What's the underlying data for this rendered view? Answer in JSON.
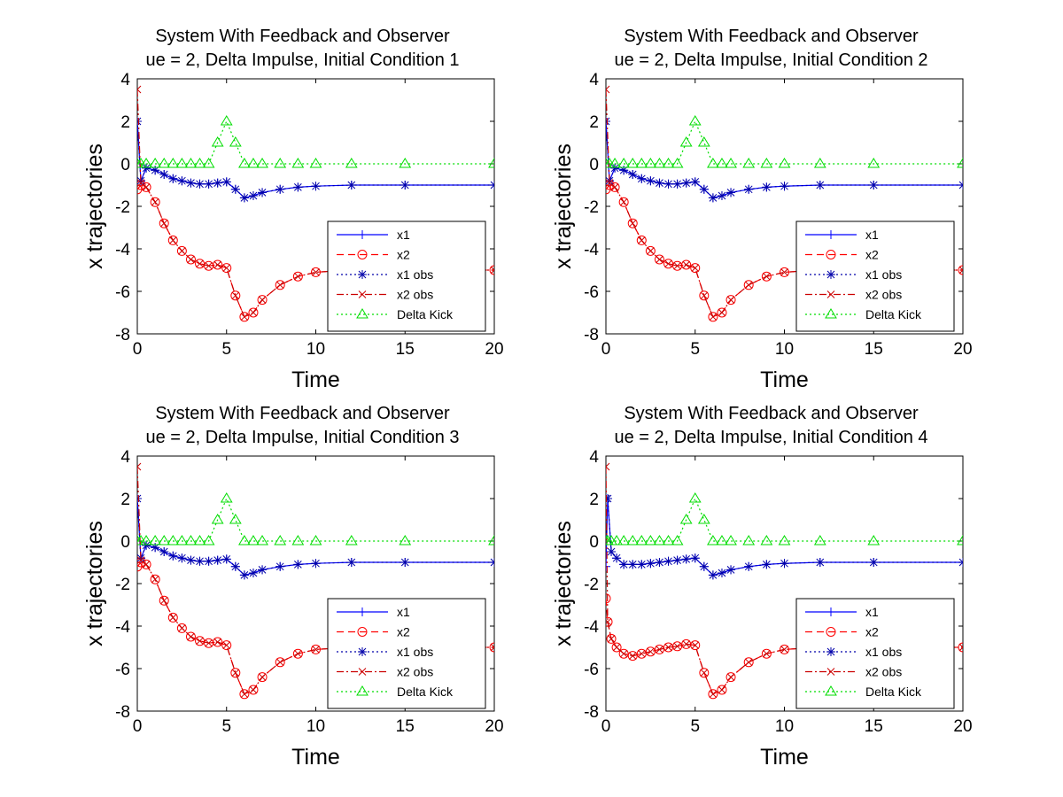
{
  "figure": {
    "series_legend": [
      {
        "name": "x1",
        "color": "#0000ff",
        "line": "solid",
        "marker": "plus"
      },
      {
        "name": "x2",
        "color": "#ff0000",
        "line": "dashed",
        "marker": "circle"
      },
      {
        "name": "x1 obs",
        "color": "#0000aa",
        "line": "dotted",
        "marker": "star"
      },
      {
        "name": "x2 obs",
        "color": "#cc0000",
        "line": "dashdot",
        "marker": "x"
      },
      {
        "name": "Delta Kick",
        "color": "#00dd00",
        "line": "dotted",
        "marker": "triangle"
      }
    ]
  },
  "chart_data": [
    {
      "type": "line",
      "title": "System With Feedback and Observer",
      "subtitle": "ue = 2, Delta Impulse, Initial Condition 1",
      "xlabel": "Time",
      "ylabel": "x trajectories",
      "xlim": [
        0,
        20
      ],
      "ylim": [
        -8,
        4
      ],
      "xticks": [
        0,
        5,
        10,
        15,
        20
      ],
      "yticks": [
        -8,
        -6,
        -4,
        -2,
        0,
        2,
        4
      ],
      "grid": false,
      "legend_position": "bottom-right",
      "x": [
        0,
        0.2,
        0.5,
        1,
        1.5,
        2,
        2.5,
        3,
        3.5,
        4,
        4.5,
        5,
        5.5,
        6,
        6.5,
        7,
        8,
        9,
        10,
        12,
        15,
        20
      ],
      "series": [
        {
          "name": "x1",
          "values": [
            2,
            -0.8,
            -0.2,
            -0.3,
            -0.5,
            -0.7,
            -0.8,
            -0.9,
            -0.95,
            -0.95,
            -0.9,
            -0.85,
            -1.2,
            -1.6,
            -1.5,
            -1.35,
            -1.2,
            -1.1,
            -1.05,
            -1.0,
            -1.0,
            -1.0
          ]
        },
        {
          "name": "x2",
          "values": [
            -1.2,
            -1.0,
            -1.1,
            -1.8,
            -2.8,
            -3.6,
            -4.1,
            -4.5,
            -4.7,
            -4.8,
            -4.75,
            -4.9,
            -6.2,
            -7.2,
            -7.0,
            -6.4,
            -5.7,
            -5.3,
            -5.1,
            -5.0,
            -5.0,
            -5.0
          ]
        },
        {
          "name": "x1 obs",
          "values": [
            2,
            -0.8,
            -0.2,
            -0.3,
            -0.5,
            -0.7,
            -0.8,
            -0.9,
            -0.95,
            -0.95,
            -0.9,
            -0.85,
            -1.2,
            -1.6,
            -1.5,
            -1.35,
            -1.2,
            -1.1,
            -1.05,
            -1.0,
            -1.0,
            -1.0
          ]
        },
        {
          "name": "x2 obs",
          "values": [
            3.5,
            -0.9,
            -1.1,
            -1.8,
            -2.8,
            -3.6,
            -4.1,
            -4.5,
            -4.7,
            -4.8,
            -4.75,
            -4.9,
            -6.2,
            -7.2,
            -7.0,
            -6.4,
            -5.7,
            -5.3,
            -5.1,
            -5.0,
            -5.0,
            -5.0
          ]
        },
        {
          "name": "Delta Kick",
          "values": [
            0,
            0,
            0,
            0,
            0,
            0,
            0,
            0,
            0,
            0,
            1.0,
            2.0,
            1.0,
            0,
            0,
            0,
            0,
            0,
            0,
            0,
            0,
            0
          ]
        }
      ]
    },
    {
      "type": "line",
      "title": "System With Feedback and Observer",
      "subtitle": "ue = 2, Delta Impulse, Initial Condition 2",
      "xlabel": "Time",
      "ylabel": "x trajectories",
      "xlim": [
        0,
        20
      ],
      "ylim": [
        -8,
        4
      ],
      "xticks": [
        0,
        5,
        10,
        15,
        20
      ],
      "yticks": [
        -8,
        -6,
        -4,
        -2,
        0,
        2,
        4
      ],
      "grid": false,
      "legend_position": "bottom-right",
      "x": [
        0,
        0.2,
        0.5,
        1,
        1.5,
        2,
        2.5,
        3,
        3.5,
        4,
        4.5,
        5,
        5.5,
        6,
        6.5,
        7,
        8,
        9,
        10,
        12,
        15,
        20
      ],
      "series": [
        {
          "name": "x1",
          "values": [
            2,
            -0.8,
            -0.2,
            -0.3,
            -0.5,
            -0.7,
            -0.8,
            -0.9,
            -0.95,
            -0.95,
            -0.9,
            -0.85,
            -1.2,
            -1.6,
            -1.5,
            -1.35,
            -1.2,
            -1.1,
            -1.05,
            -1.0,
            -1.0,
            -1.0
          ]
        },
        {
          "name": "x2",
          "values": [
            -1.2,
            -1.0,
            -1.1,
            -1.8,
            -2.8,
            -3.6,
            -4.1,
            -4.5,
            -4.7,
            -4.8,
            -4.75,
            -4.9,
            -6.2,
            -7.2,
            -7.0,
            -6.4,
            -5.7,
            -5.3,
            -5.1,
            -5.0,
            -5.0,
            -5.0
          ]
        },
        {
          "name": "x1 obs",
          "values": [
            2,
            -0.8,
            -0.2,
            -0.3,
            -0.5,
            -0.7,
            -0.8,
            -0.9,
            -0.95,
            -0.95,
            -0.9,
            -0.85,
            -1.2,
            -1.6,
            -1.5,
            -1.35,
            -1.2,
            -1.1,
            -1.05,
            -1.0,
            -1.0,
            -1.0
          ]
        },
        {
          "name": "x2 obs",
          "values": [
            3.5,
            -0.9,
            -1.1,
            -1.8,
            -2.8,
            -3.6,
            -4.1,
            -4.5,
            -4.7,
            -4.8,
            -4.75,
            -4.9,
            -6.2,
            -7.2,
            -7.0,
            -6.4,
            -5.7,
            -5.3,
            -5.1,
            -5.0,
            -5.0,
            -5.0
          ]
        },
        {
          "name": "Delta Kick",
          "values": [
            0,
            0,
            0,
            0,
            0,
            0,
            0,
            0,
            0,
            0,
            1.0,
            2.0,
            1.0,
            0,
            0,
            0,
            0,
            0,
            0,
            0,
            0,
            0
          ]
        }
      ]
    },
    {
      "type": "line",
      "title": "System With Feedback and Observer",
      "subtitle": "ue = 2, Delta Impulse, Initial Condition 3",
      "xlabel": "Time",
      "ylabel": "x trajectories",
      "xlim": [
        0,
        20
      ],
      "ylim": [
        -8,
        4
      ],
      "xticks": [
        0,
        5,
        10,
        15,
        20
      ],
      "yticks": [
        -8,
        -6,
        -4,
        -2,
        0,
        2,
        4
      ],
      "grid": false,
      "legend_position": "bottom-right",
      "x": [
        0,
        0.2,
        0.5,
        1,
        1.5,
        2,
        2.5,
        3,
        3.5,
        4,
        4.5,
        5,
        5.5,
        6,
        6.5,
        7,
        8,
        9,
        10,
        12,
        15,
        20
      ],
      "series": [
        {
          "name": "x1",
          "values": [
            2,
            -0.8,
            -0.2,
            -0.3,
            -0.5,
            -0.7,
            -0.8,
            -0.9,
            -0.95,
            -0.95,
            -0.9,
            -0.85,
            -1.2,
            -1.6,
            -1.5,
            -1.35,
            -1.2,
            -1.1,
            -1.05,
            -1.0,
            -1.0,
            -1.0
          ]
        },
        {
          "name": "x2",
          "values": [
            -1.2,
            -1.0,
            -1.1,
            -1.8,
            -2.8,
            -3.6,
            -4.1,
            -4.5,
            -4.7,
            -4.8,
            -4.75,
            -4.9,
            -6.2,
            -7.2,
            -7.0,
            -6.4,
            -5.7,
            -5.3,
            -5.1,
            -5.0,
            -5.0,
            -5.0
          ]
        },
        {
          "name": "x1 obs",
          "values": [
            2,
            -0.8,
            -0.2,
            -0.3,
            -0.5,
            -0.7,
            -0.8,
            -0.9,
            -0.95,
            -0.95,
            -0.9,
            -0.85,
            -1.2,
            -1.6,
            -1.5,
            -1.35,
            -1.2,
            -1.1,
            -1.05,
            -1.0,
            -1.0,
            -1.0
          ]
        },
        {
          "name": "x2 obs",
          "values": [
            3.5,
            -0.9,
            -1.1,
            -1.8,
            -2.8,
            -3.6,
            -4.1,
            -4.5,
            -4.7,
            -4.8,
            -4.75,
            -4.9,
            -6.2,
            -7.2,
            -7.0,
            -6.4,
            -5.7,
            -5.3,
            -5.1,
            -5.0,
            -5.0,
            -5.0
          ]
        },
        {
          "name": "Delta Kick",
          "values": [
            0,
            0,
            0,
            0,
            0,
            0,
            0,
            0,
            0,
            0,
            1.0,
            2.0,
            1.0,
            0,
            0,
            0,
            0,
            0,
            0,
            0,
            0,
            0
          ]
        }
      ]
    },
    {
      "type": "line",
      "title": "System With Feedback and Observer",
      "subtitle": "ue = 2, Delta Impulse, Initial Condition 4",
      "xlabel": "Time",
      "ylabel": "x trajectories",
      "xlim": [
        0,
        20
      ],
      "ylim": [
        -8,
        4
      ],
      "xticks": [
        0,
        5,
        10,
        15,
        20
      ],
      "yticks": [
        -8,
        -6,
        -4,
        -2,
        0,
        2,
        4
      ],
      "grid": false,
      "legend_position": "bottom-right",
      "x": [
        0,
        0.1,
        0.3,
        0.6,
        1,
        1.5,
        2,
        2.5,
        3,
        3.5,
        4,
        4.5,
        5,
        5.5,
        6,
        6.5,
        7,
        8,
        9,
        10,
        12,
        15,
        20
      ],
      "series": [
        {
          "name": "x1",
          "values": [
            -1.2,
            2,
            -0.5,
            -0.8,
            -1.1,
            -1.1,
            -1.1,
            -1.05,
            -1.0,
            -0.95,
            -0.9,
            -0.85,
            -0.8,
            -1.2,
            -1.6,
            -1.5,
            -1.35,
            -1.2,
            -1.1,
            -1.05,
            -1.0,
            -1.0,
            -1.0
          ]
        },
        {
          "name": "x2",
          "values": [
            -2.7,
            -3.8,
            -4.6,
            -5.0,
            -5.3,
            -5.4,
            -5.3,
            -5.2,
            -5.1,
            -5.0,
            -4.95,
            -4.85,
            -4.9,
            -6.2,
            -7.2,
            -7.0,
            -6.4,
            -5.7,
            -5.3,
            -5.1,
            -5.0,
            -5.0,
            -5.0
          ]
        },
        {
          "name": "x1 obs",
          "values": [
            2,
            2,
            -0.5,
            -0.8,
            -1.1,
            -1.1,
            -1.1,
            -1.05,
            -1.0,
            -0.95,
            -0.9,
            -0.85,
            -0.8,
            -1.2,
            -1.6,
            -1.5,
            -1.35,
            -1.2,
            -1.1,
            -1.05,
            -1.0,
            -1.0,
            -1.0
          ]
        },
        {
          "name": "x2 obs",
          "values": [
            3.5,
            -3.8,
            -4.6,
            -5.0,
            -5.3,
            -5.4,
            -5.3,
            -5.2,
            -5.1,
            -5.0,
            -4.95,
            -4.85,
            -4.9,
            -6.2,
            -7.2,
            -7.0,
            -6.4,
            -5.7,
            -5.3,
            -5.1,
            -5.0,
            -5.0,
            -5.0
          ]
        },
        {
          "name": "Delta Kick",
          "values": [
            0,
            0,
            0,
            0,
            0,
            0,
            0,
            0,
            0,
            0,
            0,
            1.0,
            2.0,
            1.0,
            0,
            0,
            0,
            0,
            0,
            0,
            0,
            0,
            0
          ]
        }
      ]
    }
  ]
}
